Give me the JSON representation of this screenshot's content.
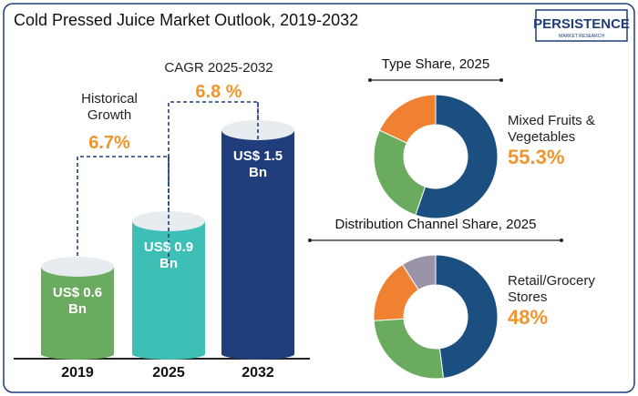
{
  "title": "Cold Pressed Juice Market Outlook, 2019-2032",
  "logo": {
    "name": "PERSISTENCE",
    "tagline": "MARKET RESEARCH"
  },
  "chart_data": [
    {
      "type": "bar",
      "categories": [
        "2019",
        "2025",
        "2032"
      ],
      "values": [
        0.6,
        0.9,
        1.5
      ],
      "value_labels": [
        "US$ 0.6 Bn",
        "US$ 0.9 Bn",
        "US$ 1.5 Bn"
      ],
      "colors": [
        "#6aab5f",
        "#3dbfb6",
        "#1f3d7a"
      ],
      "annotations": [
        {
          "text": "Historical Growth",
          "value_label": "6.7%"
        },
        {
          "text": "CAGR 2025-2032",
          "value_label": "6.8 %"
        }
      ]
    },
    {
      "type": "pie",
      "title": "Type Share, 2025",
      "categories": [
        "Mixed Fruits & Vegetables",
        null,
        null
      ],
      "values": [
        55.3,
        26.7,
        18
      ],
      "value_labels": [
        "55.3%",
        null,
        null
      ],
      "colors": [
        "#1b4f80",
        "#6aab5f",
        "#f08132"
      ]
    },
    {
      "type": "pie",
      "title": "Distribution Channel Share, 2025",
      "categories": [
        "Retail/Grocery Stores",
        null,
        null,
        null
      ],
      "values": [
        48,
        26,
        17,
        9
      ],
      "value_labels": [
        "48%",
        null,
        null,
        null
      ],
      "colors": [
        "#1b4f80",
        "#6aab5f",
        "#f08132",
        "#9b94a8"
      ]
    }
  ]
}
